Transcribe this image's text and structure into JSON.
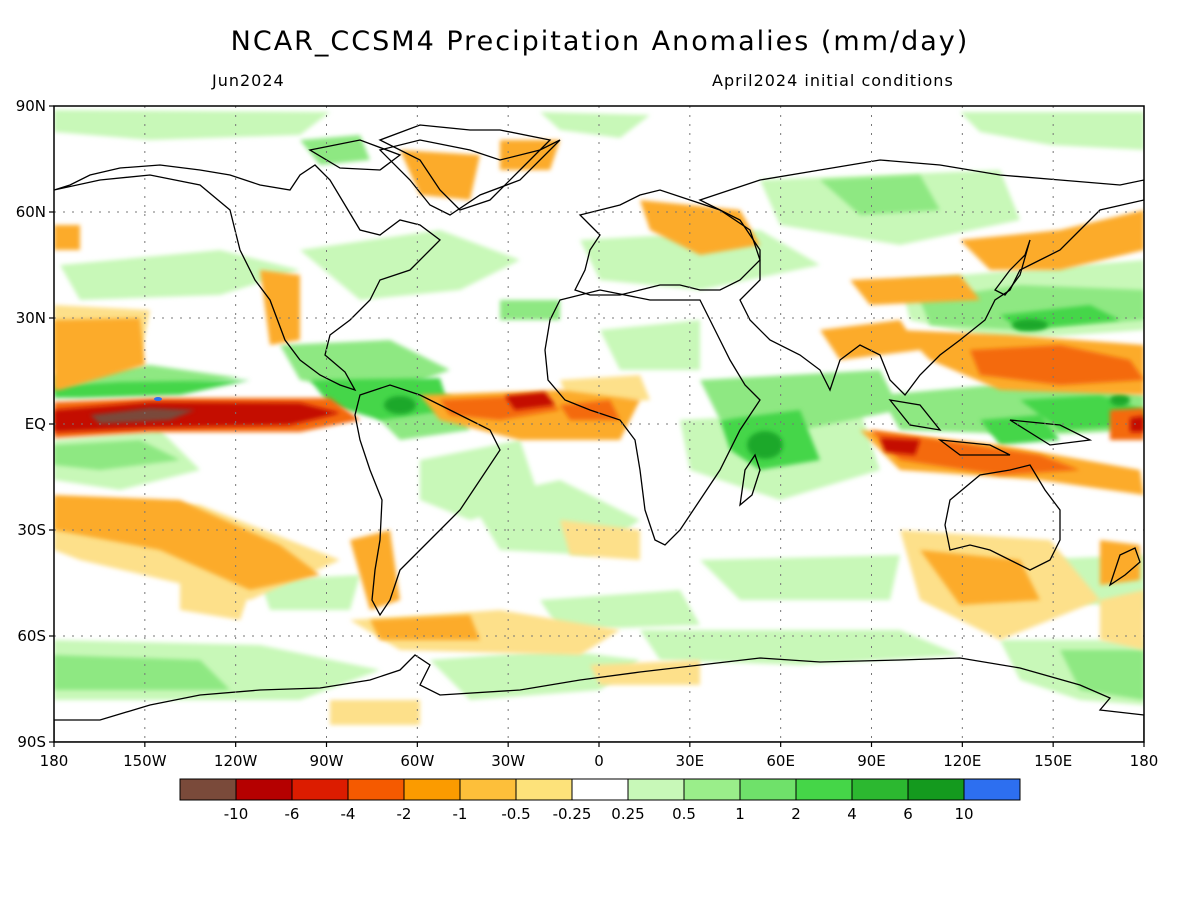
{
  "title": "NCAR_CCSM4 Precipitation Anomalies (mm/day)",
  "subtitle_left": "Jun2024",
  "subtitle_right": "April2024 initial conditions",
  "axes": {
    "lat_ticks": [
      {
        "value": 90,
        "label": "90N"
      },
      {
        "value": 60,
        "label": "60N"
      },
      {
        "value": 30,
        "label": "30N"
      },
      {
        "value": 0,
        "label": "EQ"
      },
      {
        "value": -30,
        "label": "30S"
      },
      {
        "value": -60,
        "label": "60S"
      },
      {
        "value": -90,
        "label": "90S"
      }
    ],
    "lon_ticks": [
      {
        "value": 0,
        "label": "180"
      },
      {
        "value": 30,
        "label": "150W"
      },
      {
        "value": 60,
        "label": "120W"
      },
      {
        "value": 90,
        "label": "90W"
      },
      {
        "value": 120,
        "label": "60W"
      },
      {
        "value": 150,
        "label": "30W"
      },
      {
        "value": 180,
        "label": "0"
      },
      {
        "value": 210,
        "label": "30E"
      },
      {
        "value": 240,
        "label": "60E"
      },
      {
        "value": 270,
        "label": "90E"
      },
      {
        "value": 300,
        "label": "120E"
      },
      {
        "value": 330,
        "label": "150E"
      },
      {
        "value": 360,
        "label": "180"
      }
    ]
  },
  "colorbar": {
    "colors": [
      "#7a4a3a",
      "#b50000",
      "#dc1c00",
      "#f55a00",
      "#fb9b00",
      "#fdbf3a",
      "#fde27a",
      "#ffffff",
      "#c8f8b8",
      "#9aee8a",
      "#6fe16a",
      "#45d648",
      "#2cb830",
      "#149a1e",
      "#2d6ff0"
    ],
    "labels": [
      "-10",
      "-6",
      "-4",
      "-2",
      "-1",
      "-0.5",
      "-0.25",
      "0.25",
      "0.5",
      "1",
      "2",
      "4",
      "6",
      "10"
    ]
  },
  "field_colors": {
    "dry_strong": "#7a4a3a",
    "dry_red": "#c40f00",
    "dry_orange": "#f46a10",
    "dry_amber": "#fcab2a",
    "dry_yellow": "#fde08a",
    "wet_light": "#c8f8b8",
    "wet_mid": "#8ee882",
    "wet_green": "#45d648",
    "wet_dark": "#1ea82a"
  }
}
